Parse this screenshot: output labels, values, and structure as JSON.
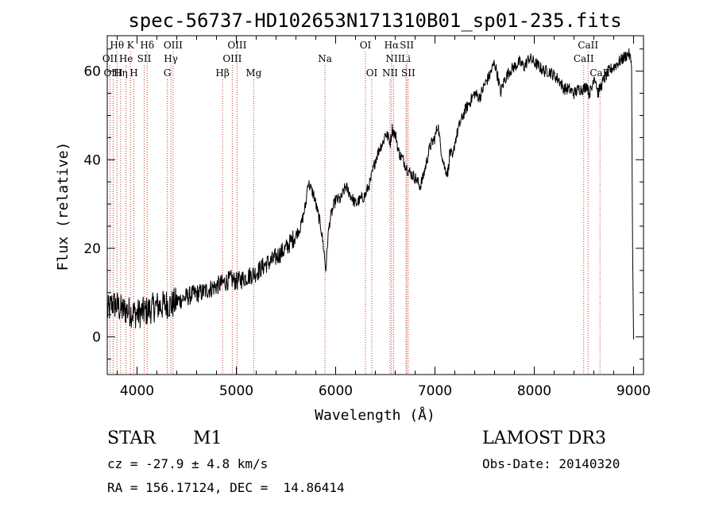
{
  "chart_data": {
    "type": "line",
    "title": "spec-56737-HD102653N171310B01_sp01-235.fits",
    "xlabel": "Wavelength (Å)",
    "ylabel": "Flux (relative)",
    "xlim": [
      3700,
      9100
    ],
    "ylim": [
      -8.5,
      68
    ],
    "xticks": [
      4000,
      5000,
      6000,
      7000,
      8000,
      9000
    ],
    "yticks": [
      0,
      20,
      40,
      60
    ],
    "series": [
      {
        "name": "spectrum",
        "x": [
          3700,
          3750,
          3800,
          3850,
          3900,
          3950,
          4000,
          4050,
          4100,
          4150,
          4200,
          4250,
          4300,
          4350,
          4400,
          4450,
          4500,
          4550,
          4600,
          4650,
          4700,
          4750,
          4800,
          4850,
          4900,
          4950,
          5000,
          5050,
          5100,
          5150,
          5200,
          5250,
          5300,
          5350,
          5400,
          5450,
          5500,
          5550,
          5600,
          5650,
          5700,
          5720,
          5740,
          5760,
          5780,
          5800,
          5820,
          5850,
          5880,
          5900,
          5910,
          5920,
          5940,
          5960,
          6000,
          6050,
          6100,
          6150,
          6200,
          6250,
          6300,
          6330,
          6350,
          6380,
          6400,
          6450,
          6480,
          6500,
          6530,
          6550,
          6570,
          6590,
          6610,
          6630,
          6650,
          6680,
          6700,
          6720,
          6750,
          6800,
          6850,
          6880,
          6900,
          6950,
          7000,
          7030,
          7050,
          7080,
          7100,
          7130,
          7150,
          7180,
          7200,
          7250,
          7300,
          7350,
          7400,
          7450,
          7500,
          7550,
          7600,
          7620,
          7640,
          7660,
          7700,
          7750,
          7800,
          7850,
          7900,
          7950,
          8000,
          8050,
          8100,
          8150,
          8200,
          8250,
          8300,
          8350,
          8400,
          8450,
          8500,
          8530,
          8550,
          8580,
          8600,
          8620,
          8640,
          8660,
          8700,
          8750,
          8800,
          8850,
          8900,
          8950,
          8980,
          8990,
          9000,
          9005
        ],
        "y": [
          5.5,
          7.5,
          7,
          6,
          6,
          5.5,
          5.2,
          5.5,
          5.8,
          6.5,
          7,
          7,
          7.5,
          7.2,
          8,
          8.5,
          9,
          9.5,
          9.8,
          10,
          10.5,
          11,
          11.5,
          12,
          12.5,
          13,
          12.5,
          13,
          13.5,
          14,
          14.5,
          15.5,
          16.5,
          17,
          18,
          19,
          20,
          21.5,
          23,
          25,
          30,
          35,
          34,
          33,
          32,
          30,
          28,
          25,
          20,
          15,
          18,
          22,
          26,
          28,
          31,
          31,
          34,
          32,
          30,
          31,
          32,
          34,
          35,
          38,
          40,
          43,
          44,
          46,
          45,
          44,
          47,
          46,
          45,
          42,
          41,
          40,
          39,
          38,
          37,
          36,
          34,
          36,
          38,
          43,
          45,
          48,
          44,
          40,
          38,
          37,
          42,
          40,
          44,
          48,
          51,
          53,
          55,
          54,
          57,
          59,
          62,
          60,
          58,
          55,
          58,
          60,
          61,
          62,
          61,
          63,
          62,
          61,
          60,
          60,
          59,
          58,
          56,
          56,
          55,
          56,
          56,
          57,
          55,
          56,
          59,
          58,
          55,
          56,
          58,
          60,
          61,
          62,
          63,
          64,
          62,
          20,
          -0.5,
          -0.5
        ]
      }
    ],
    "lines_upper": [
      {
        "label": "Hθ",
        "x": 3798
      },
      {
        "label": "K",
        "x": 3934
      },
      {
        "label": "Hδ",
        "x": 4102
      },
      {
        "label": "OIII",
        "x": 4363
      },
      {
        "label": "OIII",
        "x": 5007
      },
      {
        "label": "OI",
        "x": 6300
      },
      {
        "label": "Hα",
        "x": 6563
      },
      {
        "label": "SII",
        "x": 6717
      },
      {
        "label": "CaII",
        "x": 8542
      }
    ],
    "lines_middle": [
      {
        "label": "OII",
        "x": 3727
      },
      {
        "label": "He",
        "x": 3889
      },
      {
        "label": "SII",
        "x": 4072
      },
      {
        "label": "Hγ",
        "x": 4341
      },
      {
        "label": "OIII",
        "x": 4959
      },
      {
        "label": "Na",
        "x": 5893
      },
      {
        "label": "NII",
        "x": 6584
      },
      {
        "label": "Li",
        "x": 6708
      },
      {
        "label": "CaII",
        "x": 8498
      }
    ],
    "lines_lower": [
      {
        "label": "OIII",
        "x": 3760
      },
      {
        "label": "Hη",
        "x": 3835
      },
      {
        "label": "H",
        "x": 3968
      },
      {
        "label": "G",
        "x": 4305
      },
      {
        "label": "Hβ",
        "x": 4861
      },
      {
        "label": "Mg",
        "x": 5175
      },
      {
        "label": "OI",
        "x": 6364
      },
      {
        "label": "NII",
        "x": 6548
      },
      {
        "label": "SII",
        "x": 6731
      },
      {
        "label": "CaII",
        "x": 8662
      }
    ]
  },
  "info": {
    "class": "STAR",
    "subclass": "M1",
    "survey": "LAMOST DR3",
    "cz": "cz = -27.9 ± 4.8 km/s",
    "obs_date": "Obs-Date: 20140320",
    "coords": "RA = 156.17124, DEC =  14.86414"
  },
  "colors": {
    "axis": "#000000",
    "line_marker": "#c0392b",
    "spectrum": "#000000"
  }
}
